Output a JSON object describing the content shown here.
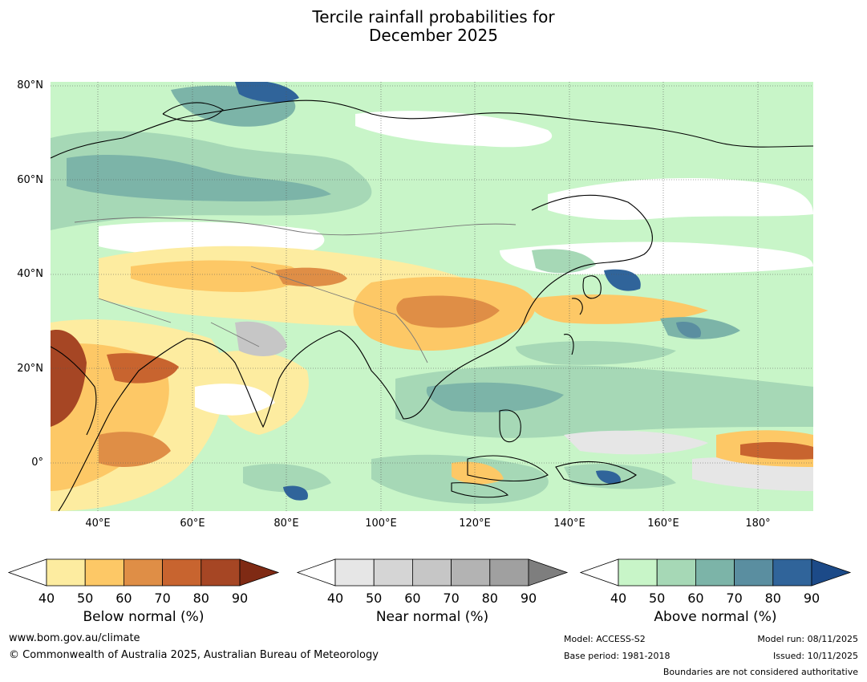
{
  "title_line1": "Tercile rainfall probabilities for",
  "title_line2": "December 2025",
  "lat_ticks": [
    "80°N",
    "60°N",
    "40°N",
    "20°N",
    "0°"
  ],
  "lon_ticks": [
    "40°E",
    "60°E",
    "80°E",
    "100°E",
    "120°E",
    "140°E",
    "160°E",
    "180°"
  ],
  "colorbars": [
    {
      "name": "Below normal (%)",
      "labels": [
        "40",
        "50",
        "60",
        "70",
        "80",
        "90"
      ],
      "colors": [
        "#ffffff",
        "#fdeca0",
        "#fdc866",
        "#df8e46",
        "#c8642f",
        "#a64624",
        "#7f2a14"
      ]
    },
    {
      "name": "Near normal (%)",
      "labels": [
        "40",
        "50",
        "60",
        "70",
        "80",
        "90"
      ],
      "colors": [
        "#ffffff",
        "#e6e6e6",
        "#d5d5d5",
        "#c6c6c6",
        "#b3b3b3",
        "#a0a0a0",
        "#7e7e7e"
      ]
    },
    {
      "name": "Above normal (%)",
      "labels": [
        "40",
        "50",
        "60",
        "70",
        "80",
        "90"
      ],
      "colors": [
        "#ffffff",
        "#c8f5c8",
        "#a6d8b6",
        "#7cb4a8",
        "#5a8ea0",
        "#30649a",
        "#1c4a88"
      ]
    }
  ],
  "footer": {
    "website": "www.bom.gov.au/climate",
    "copyright": "© Commonwealth of Australia 2025, Australian Bureau of Meteorology",
    "model": "Model: ACCESS-S2",
    "base_period": "Base period: 1981-2018",
    "model_run": "Model run: 08/11/2025",
    "issued": "Issued: 10/11/2025",
    "disclaimer": "Boundaries are not considered authoritative"
  }
}
